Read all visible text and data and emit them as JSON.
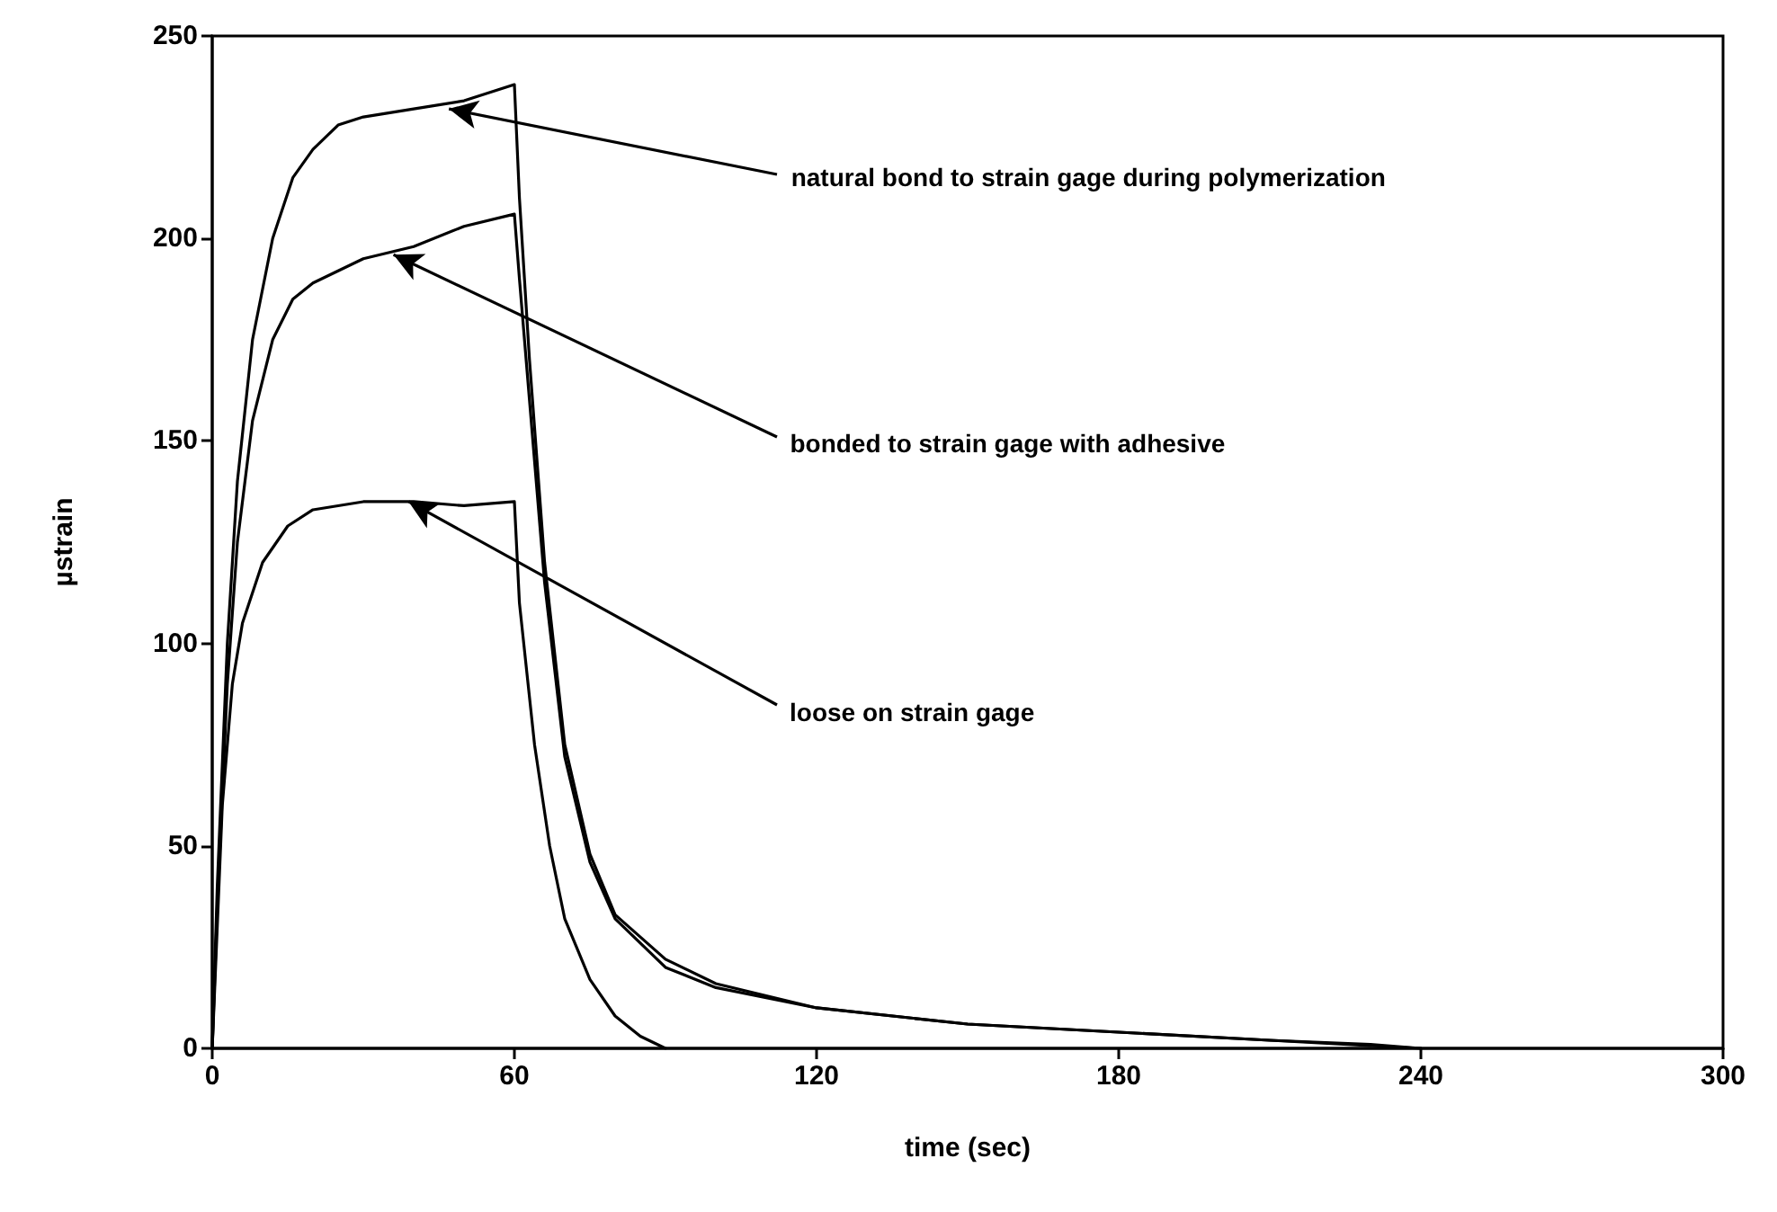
{
  "chart_data": {
    "type": "line",
    "xlabel": "time (sec)",
    "ylabel": "µstrain",
    "xlim": [
      0,
      300
    ],
    "xticks": [
      0,
      60,
      120,
      180,
      240,
      300
    ],
    "ylim": [
      0,
      250
    ],
    "yticks": [
      0,
      50,
      100,
      150,
      200,
      250
    ],
    "grid": false,
    "marker": "none",
    "line_style": "solid",
    "series": [
      {
        "color": "#000000",
        "x": [
          0,
          1,
          3,
          5,
          8,
          12,
          16,
          20,
          25,
          30,
          40,
          50,
          60,
          61,
          63,
          66,
          70,
          75,
          80,
          90,
          100,
          120,
          150,
          180,
          210,
          230,
          240
        ],
        "values": [
          0,
          40,
          100,
          140,
          175,
          200,
          215,
          222,
          228,
          230,
          232,
          234,
          238,
          210,
          170,
          120,
          75,
          48,
          33,
          22,
          16,
          10,
          6,
          4,
          2,
          1,
          0
        ]
      },
      {
        "color": "#000000",
        "x": [
          0,
          1,
          3,
          5,
          8,
          12,
          16,
          20,
          30,
          40,
          50,
          60,
          61,
          63,
          66,
          70,
          75,
          80,
          90,
          100,
          120,
          150,
          180,
          210,
          240
        ],
        "values": [
          0,
          35,
          90,
          125,
          155,
          175,
          185,
          189,
          195,
          198,
          203,
          206,
          190,
          160,
          115,
          72,
          46,
          32,
          20,
          15,
          10,
          6,
          4,
          2,
          0
        ]
      },
      {
        "color": "#000000",
        "x": [
          0,
          2,
          4,
          6,
          10,
          15,
          20,
          30,
          40,
          50,
          60,
          61,
          64,
          67,
          70,
          75,
          80,
          85,
          90
        ],
        "values": [
          0,
          60,
          90,
          105,
          120,
          129,
          133,
          135,
          135,
          134,
          135,
          110,
          75,
          50,
          32,
          17,
          8,
          3,
          0
        ]
      }
    ],
    "annotations": [
      {
        "text": "natural bond to strain gage during polymerization",
        "x": 47,
        "y": 232
      },
      {
        "text": "bonded to strain gage with adhesive",
        "x": 36,
        "y": 196
      },
      {
        "text": "loose on strain gage",
        "x": 39,
        "y": 135
      }
    ]
  }
}
